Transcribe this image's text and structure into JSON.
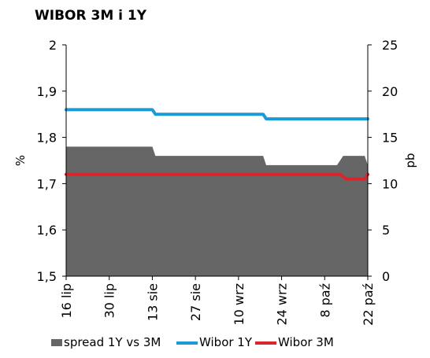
{
  "chart_data": {
    "type": "line",
    "title": "WIBOR 3M i 1Y",
    "ylabel_left": "%",
    "ylabel_right": "pb",
    "ylim_left": [
      1.5,
      2
    ],
    "ylim_right": [
      0,
      25
    ],
    "yticks_left": [
      "1,5",
      "1,6",
      "1,7",
      "1,8",
      "1,9",
      "2"
    ],
    "yticks_right": [
      "0",
      "5",
      "10",
      "15",
      "20",
      "25"
    ],
    "x_tick_labels": [
      "16 lip",
      "30 lip",
      "13 sie",
      "27 sie",
      "10 wrz",
      "24 wrz",
      "8 paź",
      "22 paź"
    ],
    "x_range_days": [
      0,
      98
    ],
    "x_tick_days": [
      0,
      14,
      28,
      42,
      56,
      70,
      84,
      98
    ],
    "series": [
      {
        "name": "spread 1Y vs 3M",
        "type": "area",
        "axis": "right",
        "color": "#666666",
        "points": [
          [
            0,
            14
          ],
          [
            28,
            14
          ],
          [
            29,
            13
          ],
          [
            64,
            13
          ],
          [
            65,
            12
          ],
          [
            88,
            12
          ],
          [
            90,
            13
          ],
          [
            97,
            13
          ],
          [
            98,
            12
          ]
        ]
      },
      {
        "name": "Wibor  1Y",
        "type": "line",
        "axis": "left",
        "color": "#1b9ad6",
        "points": [
          [
            0,
            1.86
          ],
          [
            28,
            1.86
          ],
          [
            29,
            1.85
          ],
          [
            64,
            1.85
          ],
          [
            65,
            1.84
          ],
          [
            98,
            1.84
          ]
        ]
      },
      {
        "name": "Wibor  3M",
        "type": "line",
        "axis": "left",
        "color": "#d9262c",
        "points": [
          [
            0,
            1.72
          ],
          [
            89,
            1.72
          ],
          [
            91,
            1.71
          ],
          [
            97,
            1.71
          ],
          [
            98,
            1.72
          ]
        ]
      }
    ],
    "legend_position": "bottom"
  }
}
